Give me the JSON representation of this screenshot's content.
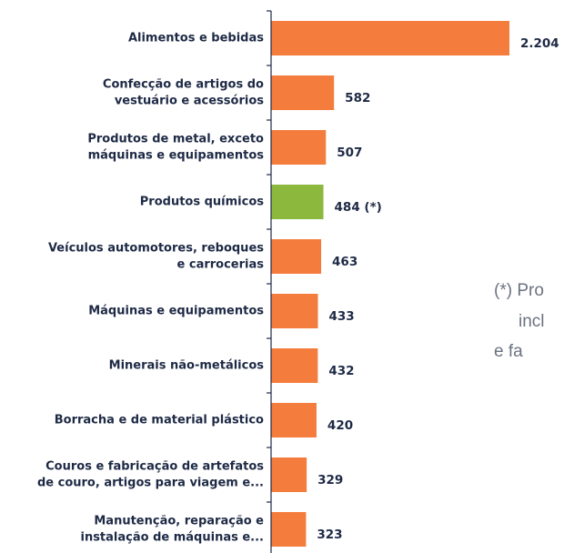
{
  "chart_data": {
    "type": "barh",
    "categories": [
      [
        "Alimentos e bebidas"
      ],
      [
        "Confecção de artigos do",
        "vestuário e acessórios"
      ],
      [
        "Produtos de metal, exceto",
        "máquinas e equipamentos"
      ],
      [
        "Produtos químicos"
      ],
      [
        "Veículos automotores, reboques",
        "e carrocerias"
      ],
      [
        "Máquinas e equipamentos"
      ],
      [
        "Minerais não-metálicos"
      ],
      [
        "Borracha e de material plástico"
      ],
      [
        "Couros e fabricação de artefatos",
        "de couro, artigos para viagem e..."
      ],
      [
        "Manutenção, reparação e",
        "instalação de máquinas e..."
      ]
    ],
    "values": [
      2204,
      582,
      507,
      484,
      463,
      433,
      432,
      420,
      329,
      323
    ],
    "value_labels": [
      "2.204",
      "582",
      "507",
      "484 (*)",
      "463",
      "433",
      "432",
      "420",
      "329",
      "323"
    ],
    "colors": [
      "#f47c3c",
      "#f47c3c",
      "#f47c3c",
      "#8cb83e",
      "#f47c3c",
      "#f47c3c",
      "#f47c3c",
      "#f47c3c",
      "#f47c3c",
      "#f47c3c"
    ],
    "annotation": [
      "(*) Pro",
      "incl",
      "e fa"
    ]
  }
}
